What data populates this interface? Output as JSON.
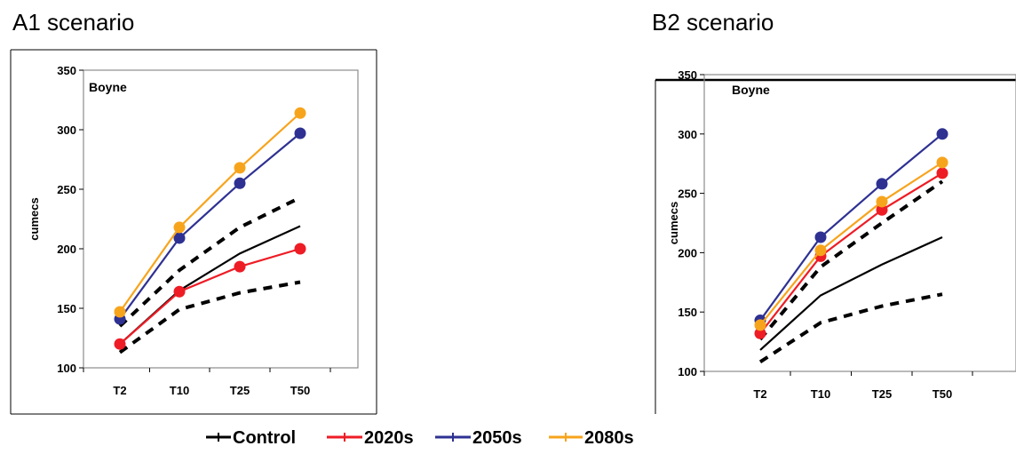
{
  "scenarios": [
    {
      "title": "A1 scenario"
    },
    {
      "title": "B2 scenario"
    }
  ],
  "chart_data": [
    {
      "type": "line",
      "title": "A1 scenario",
      "panel_label": "Boyne",
      "ylabel": "cumecs",
      "categories": [
        "T2",
        "T10",
        "T25",
        "T50"
      ],
      "ylim": [
        100,
        350
      ],
      "yticks": [
        100,
        150,
        200,
        250,
        300,
        350
      ],
      "series": [
        {
          "name": "Control",
          "values": [
            120,
            165,
            196,
            219
          ],
          "color": "#000000"
        },
        {
          "name": "2020s",
          "values": [
            120,
            164,
            185,
            200
          ],
          "color": "#ee1c25"
        },
        {
          "name": "2050s",
          "values": [
            141,
            209,
            255,
            297
          ],
          "color": "#2e3192"
        },
        {
          "name": "2080s",
          "values": [
            147,
            218,
            268,
            314
          ],
          "color": "#f7a41d"
        }
      ],
      "bounds": {
        "upper": [
          135,
          182,
          218,
          243
        ],
        "lower": [
          113,
          149,
          163,
          172
        ]
      }
    },
    {
      "type": "line",
      "title": "B2 scenario",
      "panel_label": "Boyne",
      "ylabel": "cumecs",
      "categories": [
        "T2",
        "T10",
        "T25",
        "T50"
      ],
      "ylim": [
        100,
        350
      ],
      "yticks": [
        100,
        150,
        200,
        250,
        300,
        350
      ],
      "series": [
        {
          "name": "Control",
          "values": [
            118,
            164,
            190,
            213
          ],
          "color": "#000000"
        },
        {
          "name": "2020s",
          "values": [
            132,
            197,
            236,
            267
          ],
          "color": "#ee1c25"
        },
        {
          "name": "2050s",
          "values": [
            143,
            213,
            258,
            300
          ],
          "color": "#2e3192"
        },
        {
          "name": "2080s",
          "values": [
            139,
            202,
            243,
            276
          ],
          "color": "#f7a41d"
        }
      ],
      "bounds": {
        "upper": [
          127,
          188,
          225,
          260
        ],
        "lower": [
          108,
          141,
          155,
          165
        ]
      }
    }
  ],
  "legend": [
    {
      "label": "Control",
      "color": "#000000"
    },
    {
      "label": "2020s",
      "color": "#ee1c25"
    },
    {
      "label": "2050s",
      "color": "#2e3192"
    },
    {
      "label": "2080s",
      "color": "#f7a41d"
    }
  ]
}
